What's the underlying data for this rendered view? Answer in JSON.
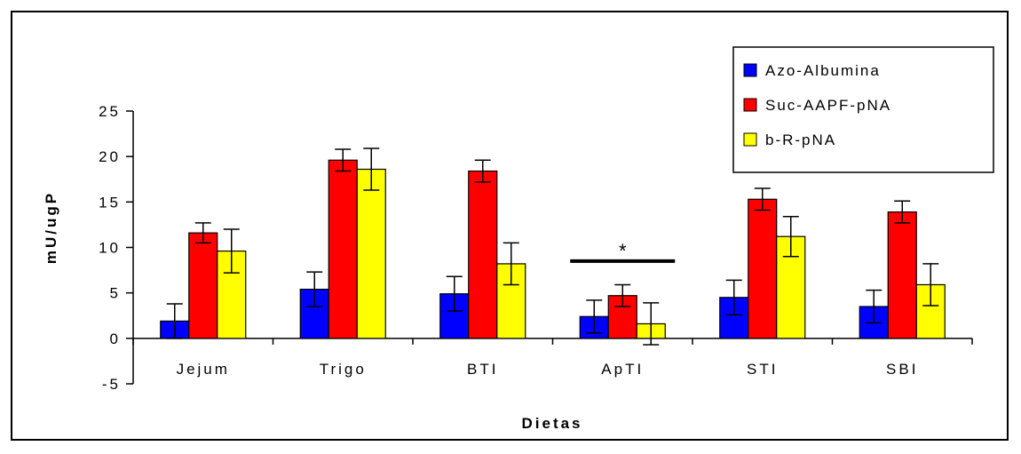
{
  "chart_data": {
    "type": "bar",
    "title": "",
    "xlabel": "Dietas",
    "ylabel": "mU/ugP",
    "ylim": [
      -5,
      25
    ],
    "yticks": [
      -5,
      0,
      5,
      10,
      15,
      20,
      25
    ],
    "grid": false,
    "legend_position": "top-right",
    "categories": [
      "Jejum",
      "Trigo",
      "BTI",
      "ApTI",
      "STI",
      "SBI"
    ],
    "series": [
      {
        "name": "Azo-Albumina",
        "color": "#0000ff",
        "values": [
          1.9,
          5.4,
          4.9,
          2.4,
          4.5,
          3.5
        ],
        "errors": [
          1.9,
          1.9,
          1.9,
          1.8,
          1.9,
          1.8
        ]
      },
      {
        "name": "Suc-AAPF-pNA",
        "color": "#ff0000",
        "values": [
          11.6,
          19.6,
          18.4,
          4.7,
          15.3,
          13.9
        ],
        "errors": [
          1.1,
          1.2,
          1.2,
          1.2,
          1.2,
          1.2
        ]
      },
      {
        "name": "b-R-pNA",
        "color": "#ffff00",
        "values": [
          9.6,
          18.6,
          8.2,
          1.6,
          11.2,
          5.9
        ],
        "errors": [
          2.4,
          2.3,
          2.3,
          2.3,
          2.2,
          2.3
        ]
      }
    ],
    "annotations": [
      {
        "text": "*",
        "category": "ApTI",
        "line_y": 8.5
      }
    ]
  }
}
